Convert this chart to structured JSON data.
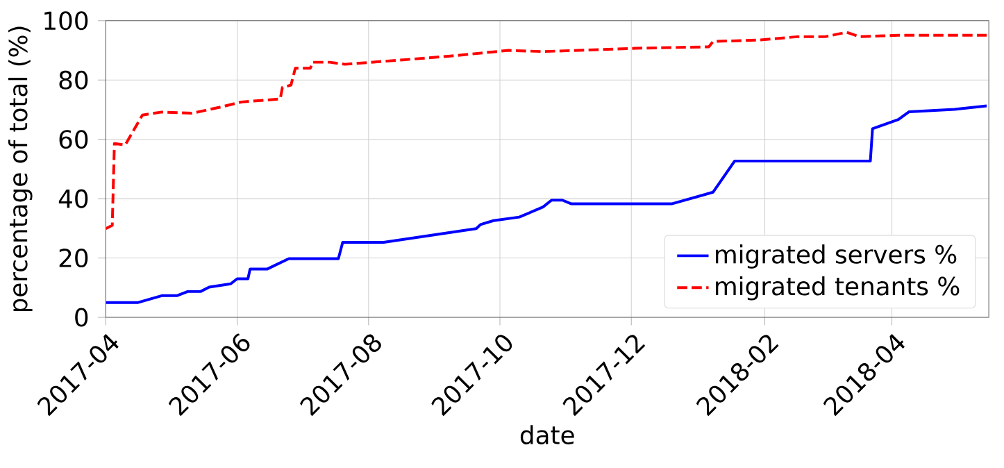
{
  "chart_data": {
    "type": "line",
    "xlabel": "date",
    "ylabel": "percentage of total (%)",
    "xlim": [
      "2017-04-01",
      "2018-05-16"
    ],
    "ylim": [
      0,
      100
    ],
    "xticks": [
      {
        "value": "2017-04-01",
        "label": "2017-04"
      },
      {
        "value": "2017-06-01",
        "label": "2017-06"
      },
      {
        "value": "2017-08-01",
        "label": "2017-08"
      },
      {
        "value": "2017-10-01",
        "label": "2017-10"
      },
      {
        "value": "2017-12-01",
        "label": "2017-12"
      },
      {
        "value": "2018-02-01",
        "label": "2018-02"
      },
      {
        "value": "2018-04-01",
        "label": "2018-04"
      }
    ],
    "yticks": [
      0,
      20,
      40,
      60,
      80,
      100
    ],
    "grid": true,
    "legend": "bottom right",
    "marker": "none",
    "series": [
      {
        "name": "migrated servers %",
        "color": "#0000ff",
        "line_style": "solid",
        "x": [
          "2017-04-01",
          "2017-04-16",
          "2017-04-27",
          "2017-05-04",
          "2017-05-09",
          "2017-05-15",
          "2017-05-19",
          "2017-05-29",
          "2017-06-01",
          "2017-06-06",
          "2017-06-07",
          "2017-06-15",
          "2017-06-25",
          "2017-07-18",
          "2017-07-20",
          "2017-08-08",
          "2017-09-20",
          "2017-09-22",
          "2017-09-28",
          "2017-10-10",
          "2017-10-21",
          "2017-10-25",
          "2017-10-30",
          "2017-11-03",
          "2017-12-20",
          "2018-01-08",
          "2018-01-18",
          "2018-03-22",
          "2018-03-23",
          "2018-04-04",
          "2018-04-09",
          "2018-04-30",
          "2018-05-15"
        ],
        "values": [
          5,
          5,
          7.3,
          7.3,
          8.7,
          8.7,
          10.2,
          11.3,
          13,
          13,
          16.3,
          16.3,
          19.8,
          19.8,
          25.3,
          25.3,
          29.9,
          31.3,
          32.6,
          33.8,
          37.2,
          39.5,
          39.5,
          38.3,
          38.3,
          42.2,
          52.7,
          52.7,
          63.6,
          66.7,
          69.3,
          70.1,
          71.3
        ]
      },
      {
        "name": "migrated tenants %",
        "color": "#ff0000",
        "line_style": "dashed",
        "x": [
          "2017-04-01",
          "2017-04-04",
          "2017-04-05",
          "2017-04-10",
          "2017-04-18",
          "2017-04-27",
          "2017-05-11",
          "2017-05-25",
          "2017-06-03",
          "2017-06-21",
          "2017-06-22",
          "2017-06-26",
          "2017-06-28",
          "2017-07-05",
          "2017-07-06",
          "2017-07-14",
          "2017-07-21",
          "2017-08-17",
          "2017-09-07",
          "2017-09-28",
          "2017-10-05",
          "2017-10-21",
          "2017-12-03",
          "2018-01-06",
          "2018-01-08",
          "2018-01-30",
          "2018-02-16",
          "2018-03-01",
          "2018-03-11",
          "2018-03-17",
          "2018-04-04",
          "2018-05-15"
        ],
        "values": [
          29.9,
          31,
          58.6,
          58.1,
          68.2,
          69.2,
          68.8,
          71,
          72.6,
          73.6,
          77.5,
          78.3,
          84,
          84,
          86,
          86,
          85.3,
          86.8,
          88,
          89.5,
          90,
          89.6,
          90.7,
          91.2,
          93,
          93.5,
          94.6,
          94.6,
          96.1,
          94.6,
          95.1,
          95.1
        ]
      }
    ]
  }
}
